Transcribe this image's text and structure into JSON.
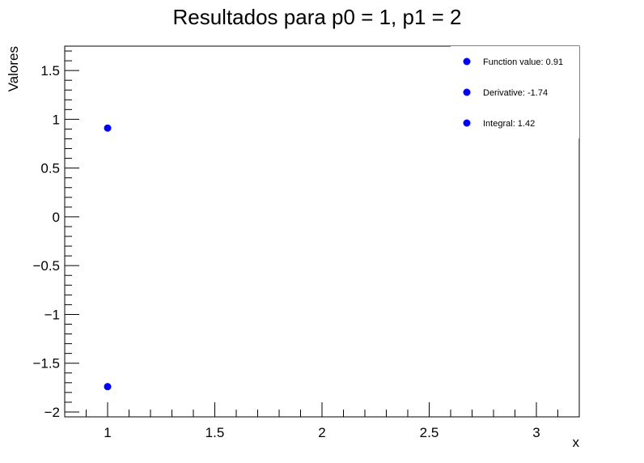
{
  "chart_data": {
    "type": "scatter",
    "title": "Resultados para p0 = 1, p1 = 2",
    "xlabel": "x",
    "ylabel": "Valores",
    "xlim": [
      0.8,
      3.2
    ],
    "ylim": [
      -2.05,
      1.75
    ],
    "x_ticks": [
      1,
      1.5,
      2,
      2.5,
      3
    ],
    "x_tick_labels": [
      "1",
      "1.5",
      "2",
      "2.5",
      "3"
    ],
    "y_ticks": [
      -2,
      -1.5,
      -1,
      -0.5,
      0,
      0.5,
      1,
      1.5
    ],
    "y_tick_labels": [
      "−2",
      "−1.5",
      "−1",
      "−0.5",
      "0",
      "0.5",
      "1",
      "1.5"
    ],
    "grid": false,
    "legend_position": "top-right",
    "marker_color": "#0000ff",
    "legend": [
      {
        "label": "Function value: 0.91"
      },
      {
        "label": "Derivative: -1.74"
      },
      {
        "label": "Integral: 1.42"
      }
    ],
    "points": [
      {
        "x": 1,
        "y": 0.91
      },
      {
        "x": 1,
        "y": -1.74
      }
    ]
  }
}
